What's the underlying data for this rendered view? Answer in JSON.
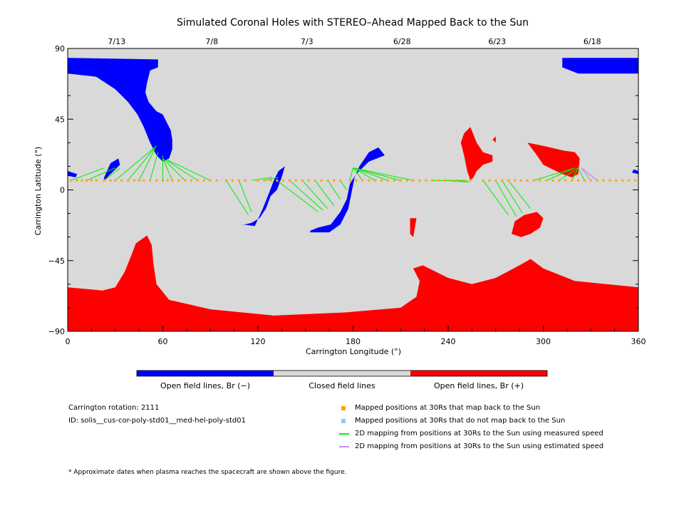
{
  "chart_data": {
    "type": "map",
    "title": "Simulated Coronal Holes with STEREO–Ahead Mapped Back to the Sun",
    "xlabel": "Carrington Longitude (°)",
    "ylabel": "Carrington Latitude (°)",
    "xlim": [
      0,
      360
    ],
    "ylim": [
      -90,
      90
    ],
    "x_ticks": [
      "0",
      "60",
      "120",
      "180",
      "240",
      "300",
      "360"
    ],
    "y_ticks": [
      "90",
      "45",
      "0",
      "−45",
      "−90"
    ],
    "top_axis_dates": [
      {
        "label": "7/13",
        "lon": 30
      },
      {
        "label": "7/8",
        "lon": 90
      },
      {
        "label": "7/3",
        "lon": 150
      },
      {
        "label": "6/28",
        "lon": 210
      },
      {
        "label": "6/23",
        "lon": 270
      },
      {
        "label": "6/18",
        "lon": 330
      }
    ],
    "colors": {
      "open_negative": "#0000ff",
      "closed": "#d9d9d9",
      "open_positive": "#ff0000",
      "mapped": "#ffa500",
      "not_mapped": "#87cefa",
      "measured": "#00ee00",
      "estimated": "#bf8fef"
    },
    "regions": [
      {
        "polarity": "open_negative",
        "points": [
          [
            0,
            84
          ],
          [
            57,
            83
          ],
          [
            57,
            78
          ],
          [
            52,
            76
          ],
          [
            50,
            68
          ],
          [
            49,
            62
          ],
          [
            51,
            56
          ],
          [
            56,
            50
          ],
          [
            60,
            48
          ],
          [
            62,
            44
          ],
          [
            65,
            38
          ],
          [
            66,
            32
          ],
          [
            66,
            26
          ],
          [
            64,
            20
          ],
          [
            60,
            18
          ],
          [
            56,
            22
          ],
          [
            52,
            30
          ],
          [
            48,
            40
          ],
          [
            44,
            48
          ],
          [
            38,
            56
          ],
          [
            30,
            64
          ],
          [
            18,
            72
          ],
          [
            0,
            74
          ]
        ]
      },
      {
        "polarity": "open_negative",
        "points": [
          [
            312,
            84
          ],
          [
            360,
            84
          ],
          [
            360,
            74
          ],
          [
            322,
            74
          ],
          [
            312,
            78
          ]
        ]
      },
      {
        "polarity": "open_negative",
        "points": [
          [
            110,
            -22
          ],
          [
            118,
            -23
          ],
          [
            123,
            -12
          ],
          [
            127,
            -2
          ],
          [
            130,
            6
          ],
          [
            133,
            12
          ],
          [
            137,
            15
          ],
          [
            135,
            8
          ],
          [
            132,
            0
          ],
          [
            128,
            -4
          ],
          [
            125,
            -12
          ],
          [
            121,
            -18
          ],
          [
            116,
            -21
          ],
          [
            112,
            -22
          ]
        ]
      },
      {
        "polarity": "open_negative",
        "points": [
          [
            153,
            -27
          ],
          [
            165,
            -27
          ],
          [
            172,
            -22
          ],
          [
            177,
            -12
          ],
          [
            179,
            -2
          ],
          [
            181,
            8
          ],
          [
            184,
            15
          ],
          [
            190,
            24
          ],
          [
            196,
            27
          ],
          [
            200,
            22
          ],
          [
            190,
            18
          ],
          [
            182,
            10
          ],
          [
            178,
            4
          ],
          [
            176,
            -6
          ],
          [
            172,
            -14
          ],
          [
            166,
            -22
          ],
          [
            158,
            -24
          ],
          [
            153,
            -26
          ]
        ]
      },
      {
        "polarity": "open_negative",
        "points": [
          [
            23,
            8
          ],
          [
            27,
            17
          ],
          [
            32,
            20
          ],
          [
            33,
            16
          ],
          [
            29,
            12
          ],
          [
            23,
            6
          ]
        ]
      },
      {
        "polarity": "open_negative",
        "points": [
          [
            0,
            12
          ],
          [
            6,
            10
          ],
          [
            5,
            8
          ],
          [
            0,
            9
          ]
        ]
      },
      {
        "polarity": "open_negative",
        "points": [
          [
            357,
            13
          ],
          [
            360,
            12
          ],
          [
            360,
            10
          ],
          [
            356,
            11
          ]
        ]
      },
      {
        "polarity": "open_positive",
        "points": [
          [
            0,
            -62
          ],
          [
            22,
            -64
          ],
          [
            30,
            -62
          ],
          [
            36,
            -52
          ],
          [
            40,
            -42
          ],
          [
            43,
            -34
          ],
          [
            50,
            -29
          ],
          [
            53,
            -35
          ],
          [
            54,
            -46
          ],
          [
            56,
            -60
          ],
          [
            64,
            -70
          ],
          [
            90,
            -76
          ],
          [
            130,
            -80
          ],
          [
            175,
            -78
          ],
          [
            210,
            -75
          ],
          [
            220,
            -68
          ],
          [
            222,
            -58
          ],
          [
            218,
            -50
          ],
          [
            224,
            -48
          ],
          [
            240,
            -56
          ],
          [
            255,
            -60
          ],
          [
            270,
            -56
          ],
          [
            285,
            -48
          ],
          [
            292,
            -44
          ],
          [
            300,
            -50
          ],
          [
            320,
            -58
          ],
          [
            360,
            -62
          ],
          [
            360,
            -90
          ],
          [
            0,
            -90
          ]
        ]
      },
      {
        "polarity": "open_positive",
        "points": [
          [
            250,
            36
          ],
          [
            254,
            40
          ],
          [
            258,
            30
          ],
          [
            262,
            24
          ],
          [
            268,
            22
          ],
          [
            268,
            18
          ],
          [
            262,
            16
          ],
          [
            258,
            12
          ],
          [
            256,
            8
          ],
          [
            254,
            6
          ],
          [
            252,
            12
          ],
          [
            250,
            22
          ],
          [
            248,
            30
          ]
        ]
      },
      {
        "polarity": "open_positive",
        "points": [
          [
            290,
            30
          ],
          [
            300,
            28
          ],
          [
            313,
            25
          ],
          [
            320,
            24
          ],
          [
            323,
            20
          ],
          [
            322,
            10
          ],
          [
            318,
            8
          ],
          [
            312,
            10
          ],
          [
            308,
            12
          ],
          [
            300,
            16
          ],
          [
            296,
            22
          ]
        ]
      },
      {
        "polarity": "open_positive",
        "points": [
          [
            280,
            -28
          ],
          [
            282,
            -20
          ],
          [
            288,
            -16
          ],
          [
            296,
            -14
          ],
          [
            300,
            -18
          ],
          [
            298,
            -24
          ],
          [
            292,
            -28
          ],
          [
            286,
            -30
          ]
        ]
      },
      {
        "polarity": "open_positive",
        "points": [
          [
            270,
            34
          ],
          [
            270,
            30
          ],
          [
            268,
            32
          ]
        ]
      },
      {
        "polarity": "open_positive",
        "points": [
          [
            216,
            -18
          ],
          [
            220,
            -18
          ],
          [
            218,
            -30
          ],
          [
            216,
            -28
          ]
        ]
      }
    ],
    "mapped_points_lat": 6,
    "mapped_points_lon": [
      2,
      6,
      9,
      12,
      15,
      18,
      23,
      27,
      30,
      34,
      38,
      42,
      45,
      48,
      52,
      56,
      60,
      63,
      66,
      70,
      74,
      78,
      82,
      86,
      90,
      94,
      100,
      104,
      108,
      112,
      120,
      124,
      128,
      132,
      136,
      140,
      144,
      148,
      152,
      156,
      160,
      164,
      168,
      172,
      178,
      182,
      186,
      190,
      194,
      198,
      202,
      206,
      210,
      214,
      218,
      222,
      226,
      230,
      234,
      238,
      242,
      246,
      250,
      254,
      262,
      266,
      270,
      274,
      278,
      282,
      286,
      290,
      294,
      298,
      302,
      306,
      310,
      314,
      318,
      322,
      326,
      330,
      334,
      338,
      342,
      346,
      350,
      354,
      358
    ],
    "measured_links": [
      [
        [
          2,
          6
        ],
        [
          23,
          14
        ]
      ],
      [
        [
          12,
          6
        ],
        [
          30,
          14
        ]
      ],
      [
        [
          23,
          6
        ],
        [
          33,
          14
        ]
      ],
      [
        [
          30,
          6
        ],
        [
          56,
          28
        ]
      ],
      [
        [
          38,
          6
        ],
        [
          56,
          28
        ]
      ],
      [
        [
          45,
          6
        ],
        [
          55,
          26
        ]
      ],
      [
        [
          52,
          6
        ],
        [
          57,
          24
        ]
      ],
      [
        [
          60,
          6
        ],
        [
          60,
          22
        ]
      ],
      [
        [
          66,
          6
        ],
        [
          60,
          20
        ]
      ],
      [
        [
          74,
          6
        ],
        [
          60,
          20
        ]
      ],
      [
        [
          82,
          6
        ],
        [
          62,
          19
        ]
      ],
      [
        [
          90,
          6
        ],
        [
          63,
          19
        ]
      ],
      [
        [
          100,
          6
        ],
        [
          114,
          -16
        ]
      ],
      [
        [
          108,
          6
        ],
        [
          116,
          -14
        ]
      ],
      [
        [
          116,
          6
        ],
        [
          129,
          8
        ]
      ],
      [
        [
          124,
          6
        ],
        [
          133,
          8
        ]
      ],
      [
        [
          132,
          6
        ],
        [
          158,
          -14
        ]
      ],
      [
        [
          140,
          6
        ],
        [
          161,
          -13
        ]
      ],
      [
        [
          148,
          6
        ],
        [
          164,
          -12
        ]
      ],
      [
        [
          156,
          6
        ],
        [
          168,
          -10
        ]
      ],
      [
        [
          164,
          6
        ],
        [
          172,
          -6
        ]
      ],
      [
        [
          172,
          6
        ],
        [
          176,
          0
        ]
      ],
      [
        [
          178,
          6
        ],
        [
          180,
          14
        ]
      ],
      [
        [
          186,
          6
        ],
        [
          180,
          14
        ]
      ],
      [
        [
          194,
          6
        ],
        [
          180,
          14
        ]
      ],
      [
        [
          202,
          6
        ],
        [
          180,
          14
        ]
      ],
      [
        [
          210,
          6
        ],
        [
          180,
          14
        ]
      ],
      [
        [
          218,
          6
        ],
        [
          180,
          14
        ]
      ],
      [
        [
          230,
          6
        ],
        [
          252,
          6
        ]
      ],
      [
        [
          238,
          6
        ],
        [
          253,
          5
        ]
      ],
      [
        [
          246,
          6
        ],
        [
          253,
          5
        ]
      ],
      [
        [
          262,
          6
        ],
        [
          278,
          -16
        ]
      ],
      [
        [
          270,
          6
        ],
        [
          283,
          -17
        ]
      ],
      [
        [
          274,
          6
        ],
        [
          287,
          -15
        ]
      ],
      [
        [
          278,
          6
        ],
        [
          292,
          -12
        ]
      ],
      [
        [
          294,
          6
        ],
        [
          320,
          14
        ]
      ],
      [
        [
          302,
          6
        ],
        [
          320,
          14
        ]
      ],
      [
        [
          310,
          6
        ],
        [
          322,
          14
        ]
      ],
      [
        [
          318,
          6
        ],
        [
          322,
          14
        ]
      ],
      [
        [
          326,
          6
        ],
        [
          322,
          14
        ]
      ]
    ],
    "estimated_links": [
      [
        [
          334,
          6
        ],
        [
          324,
          14
        ]
      ],
      [
        [
          330,
          6
        ],
        [
          324,
          14
        ]
      ]
    ],
    "colorbar": [
      {
        "label": "Open field lines, Br (−)",
        "color": "#0000ff"
      },
      {
        "label": "Closed field lines",
        "color": "#d9d9d9"
      },
      {
        "label": "Open field lines, Br (+)",
        "color": "#ff0000"
      }
    ],
    "legend": [
      {
        "kind": "square",
        "color": "#ffa500",
        "label": "Mapped positions at 30Rs that map back to the Sun"
      },
      {
        "kind": "square",
        "color": "#87cefa",
        "label": "Mapped positions at 30Rs that do not map back to the Sun"
      },
      {
        "kind": "line",
        "color": "#00ee00",
        "label": "2D mapping from positions at 30Rs to the Sun using measured speed"
      },
      {
        "kind": "line",
        "color": "#bf8fef",
        "label": "2D mapping from positions at 30Rs to the Sun using estimated speed"
      }
    ]
  },
  "info": {
    "rotation": "Carrington rotation: 2111",
    "id": "ID: solis__cus-cor-poly-std01__med-hel-poly-std01"
  },
  "footnote": "* Approximate dates when plasma reaches the spacecraft are shown above the figure."
}
